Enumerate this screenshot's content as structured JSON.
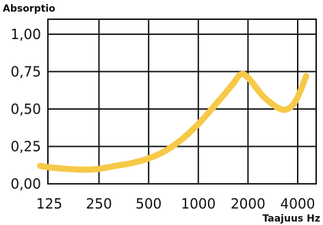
{
  "chart_data": {
    "type": "line",
    "ylabel": "Absorptio",
    "xlabel": "Taajuus Hz",
    "x_tick_labels": [
      "125",
      "250",
      "500",
      "1000",
      "2000",
      "4000"
    ],
    "y_tick_labels": [
      "0,00",
      "0,25",
      "0,50",
      "0,75",
      "1,00"
    ],
    "ylim": [
      0,
      1.1
    ],
    "x_scale": "log",
    "grid": true,
    "line_color": "#f7c948",
    "series": [
      {
        "x": [
          110,
          125,
          160,
          200,
          250,
          315,
          400,
          500,
          630,
          800,
          1000,
          1250,
          1600,
          1800,
          2000,
          2500,
          3150,
          3600,
          4000,
          4500
        ],
        "y": [
          0.12,
          0.11,
          0.1,
          0.095,
          0.1,
          0.12,
          0.14,
          0.17,
          0.22,
          0.3,
          0.4,
          0.52,
          0.66,
          0.73,
          0.71,
          0.58,
          0.5,
          0.51,
          0.58,
          0.72
        ]
      }
    ]
  }
}
